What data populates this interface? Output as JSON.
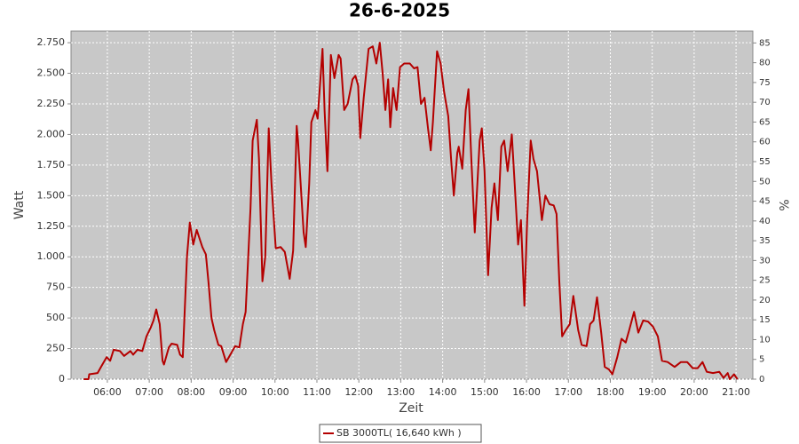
{
  "chart_data": {
    "type": "line",
    "title": "26-6-2025",
    "x_label": "Zeit",
    "y_label": "Watt",
    "y2_label": "%",
    "x": [
      "05:26",
      "05:33",
      "05:34",
      "05:46",
      "05:52",
      "05:59",
      "06:04",
      "06:09",
      "06:18",
      "06:24",
      "06:33",
      "06:37",
      "06:43",
      "06:50",
      "06:56",
      "07:02",
      "07:06",
      "07:10",
      "07:15",
      "07:19",
      "07:21",
      "07:28",
      "07:32",
      "07:40",
      "07:44",
      "07:48",
      "07:54",
      "07:58",
      "08:03",
      "08:08",
      "08:16",
      "08:21",
      "08:25",
      "08:29",
      "08:33",
      "08:39",
      "08:43",
      "08:50",
      "08:59",
      "09:03",
      "09:09",
      "09:14",
      "09:18",
      "09:25",
      "09:28",
      "09:34",
      "09:37",
      "09:42",
      "09:46",
      "09:51",
      "09:55",
      "10:01",
      "10:08",
      "10:14",
      "10:21",
      "10:26",
      "10:31",
      "10:33",
      "10:41",
      "10:44",
      "10:49",
      "10:52",
      "10:58",
      "11:01",
      "11:08",
      "11:11",
      "11:15",
      "11:20",
      "11:25",
      "11:31",
      "11:34",
      "11:39",
      "11:44",
      "11:51",
      "11:55",
      "11:59",
      "12:02",
      "12:07",
      "12:14",
      "12:20",
      "12:25",
      "12:30",
      "12:34",
      "12:38",
      "12:42",
      "12:45",
      "12:49",
      "12:54",
      "12:59",
      "13:05",
      "13:13",
      "13:19",
      "13:24",
      "13:29",
      "13:34",
      "13:39",
      "13:43",
      "13:46",
      "13:52",
      "13:57",
      "14:02",
      "14:08",
      "14:12",
      "14:16",
      "14:21",
      "14:23",
      "14:28",
      "14:33",
      "14:37",
      "14:41",
      "14:46",
      "14:53",
      "14:56",
      "15:00",
      "15:05",
      "15:10",
      "15:14",
      "15:19",
      "15:24",
      "15:28",
      "15:33",
      "15:39",
      "15:43",
      "15:48",
      "15:52",
      "15:57",
      "16:01",
      "16:06",
      "16:10",
      "16:15",
      "16:22",
      "16:27",
      "16:33",
      "16:39",
      "16:43",
      "16:47",
      "16:51",
      "16:56",
      "17:02",
      "17:07",
      "17:14",
      "17:19",
      "17:26",
      "17:31",
      "17:36",
      "17:41",
      "17:47",
      "17:52",
      "17:58",
      "18:03",
      "18:10",
      "18:16",
      "18:22",
      "18:27",
      "18:34",
      "18:40",
      "18:47",
      "18:54",
      "19:01",
      "19:08",
      "19:14",
      "19:22",
      "19:32",
      "19:41",
      "19:50",
      "19:58",
      "20:05",
      "20:12",
      "20:18",
      "20:27",
      "20:36",
      "20:42",
      "20:48",
      "20:51",
      "20:57",
      "21:02"
    ],
    "series": [
      {
        "name": "SB 3000TL( 16,640 kWh )",
        "color": "#b40000",
        "values": [
          0,
          0,
          40,
          50,
          110,
          180,
          150,
          240,
          230,
          190,
          230,
          200,
          240,
          230,
          350,
          420,
          480,
          570,
          450,
          150,
          120,
          260,
          290,
          280,
          200,
          180,
          1000,
          1280,
          1100,
          1220,
          1080,
          1020,
          780,
          500,
          400,
          280,
          270,
          140,
          230,
          270,
          260,
          450,
          550,
          1400,
          1950,
          2120,
          1800,
          800,
          1000,
          2050,
          1600,
          1070,
          1080,
          1040,
          820,
          1050,
          2070,
          1950,
          1200,
          1080,
          1600,
          2100,
          2200,
          2130,
          2700,
          2200,
          1700,
          2650,
          2460,
          2650,
          2620,
          2200,
          2250,
          2450,
          2480,
          2400,
          1970,
          2300,
          2700,
          2720,
          2580,
          2750,
          2500,
          2200,
          2450,
          2060,
          2380,
          2200,
          2550,
          2580,
          2580,
          2540,
          2550,
          2250,
          2300,
          2050,
          1870,
          2100,
          2680,
          2580,
          2350,
          2150,
          1800,
          1500,
          1850,
          1900,
          1720,
          2200,
          2370,
          1800,
          1200,
          1950,
          2050,
          1700,
          850,
          1400,
          1600,
          1300,
          1900,
          1950,
          1700,
          2000,
          1600,
          1100,
          1300,
          600,
          1300,
          1950,
          1800,
          1700,
          1300,
          1500,
          1430,
          1420,
          1350,
          800,
          350,
          400,
          450,
          680,
          400,
          280,
          270,
          450,
          480,
          670,
          380,
          100,
          80,
          40,
          180,
          330,
          300,
          400,
          550,
          380,
          480,
          470,
          430,
          350,
          150,
          140,
          100,
          140,
          140,
          90,
          90,
          140,
          60,
          50,
          60,
          10,
          50,
          0,
          40,
          0
        ]
      }
    ],
    "xlim": [
      "05:08",
      "21:24"
    ],
    "xticks": [
      "06:00",
      "07:00",
      "08:00",
      "09:00",
      "10:00",
      "11:00",
      "12:00",
      "13:00",
      "14:00",
      "15:00",
      "16:00",
      "17:00",
      "18:00",
      "19:00",
      "20:00",
      "21:00"
    ],
    "ylim": [
      0,
      2845
    ],
    "yticks": [
      0,
      250,
      500,
      750,
      {
        "value": 1000,
        "label": "1.000"
      },
      {
        "value": 1250,
        "label": "1.250"
      },
      {
        "value": 1500,
        "label": "1.500"
      },
      {
        "value": 1750,
        "label": "1.750"
      },
      {
        "value": 2000,
        "label": "2.000"
      },
      {
        "value": 2250,
        "label": "2.250"
      },
      {
        "value": 2500,
        "label": "2.500"
      },
      {
        "value": 2750,
        "label": "2.750"
      }
    ],
    "y2lim": [
      0,
      88
    ],
    "y2ticks": [
      0,
      5,
      10,
      15,
      20,
      25,
      30,
      35,
      40,
      45,
      50,
      55,
      60,
      65,
      70,
      75,
      80,
      85
    ],
    "grid": true
  }
}
